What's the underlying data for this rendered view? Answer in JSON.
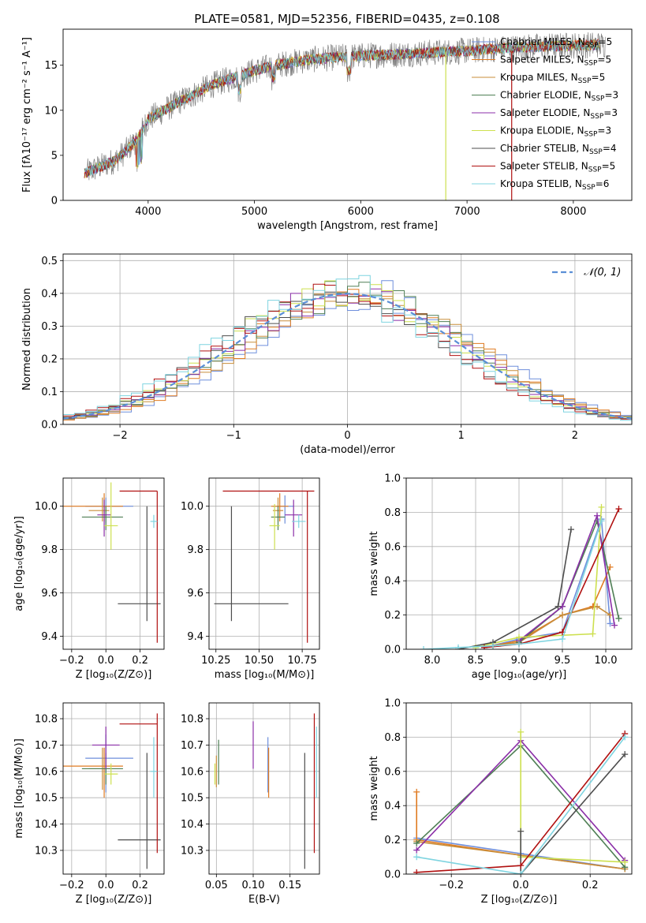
{
  "title": "PLATE=0581, MJD=52356, FIBERID=0435, z=0.108",
  "model_colors": [
    "#6f8fdc",
    "#e07b22",
    "#c88d3a",
    "#4f7f55",
    "#8b2fa8",
    "#cde04f",
    "#4d4d4d",
    "#b01010",
    "#7fd4e0"
  ],
  "chart_data": [
    {
      "id": "spectrum",
      "type": "line",
      "title": "PLATE=0581, MJD=52356, FIBERID=0435, z=0.108",
      "xlabel": "wavelength [Angstrom, rest frame]",
      "ylabel": "Flux [fλ10⁻¹⁷ erg cm⁻² s⁻¹ A⁻¹]",
      "xlim": [
        3200,
        8550
      ],
      "ylim": [
        0,
        19
      ],
      "xticks": [
        4000,
        5000,
        6000,
        7000,
        8000
      ],
      "yticks": [
        0,
        5,
        10,
        15
      ],
      "grid": false,
      "legend_position": "right",
      "data_color": "#808080",
      "continuum_knots_x": [
        3400,
        3500,
        3700,
        3800,
        3900,
        4000,
        4300,
        4600,
        4800,
        5000,
        5200,
        5500,
        5800,
        6100,
        6500,
        7000,
        7500,
        8000,
        8300
      ],
      "continuum_knots_y": [
        3.0,
        3.5,
        4.5,
        5.6,
        6.8,
        9.0,
        11.0,
        12.8,
        13.6,
        14.4,
        15.0,
        15.6,
        15.9,
        16.1,
        16.3,
        16.6,
        17.0,
        17.2,
        17.3
      ],
      "spikes": [
        {
          "x": 6800,
          "y": 0
        },
        {
          "x": 7420,
          "y": 0
        }
      ],
      "series": [
        {
          "name": "Chabrier MILES, N",
          "sub": "SSP",
          "suffix": "=5"
        },
        {
          "name": "Salpeter MILES, N",
          "sub": "SSP",
          "suffix": "=5"
        },
        {
          "name": "Kroupa MILES, N",
          "sub": "SSP",
          "suffix": "=5"
        },
        {
          "name": "Chabrier ELODIE, N",
          "sub": "SSP",
          "suffix": "=3"
        },
        {
          "name": "Salpeter ELODIE, N",
          "sub": "SSP",
          "suffix": "=3"
        },
        {
          "name": "Kroupa ELODIE, N",
          "sub": "SSP",
          "suffix": "=3"
        },
        {
          "name": "Chabrier STELIB, N",
          "sub": "SSP",
          "suffix": "=4"
        },
        {
          "name": "Salpeter STELIB, N",
          "sub": "SSP",
          "suffix": "=5"
        },
        {
          "name": "Kroupa STELIB, N",
          "sub": "SSP",
          "suffix": "=6"
        }
      ]
    },
    {
      "id": "residuals",
      "type": "histogram",
      "xlabel": "(data-model)/error",
      "ylabel": "Normed distribution",
      "xlim": [
        -2.5,
        2.5
      ],
      "ylim": [
        0,
        0.52
      ],
      "xticks": [
        -2,
        -1,
        0,
        1,
        2
      ],
      "yticks": [
        0.0,
        0.1,
        0.2,
        0.3,
        0.4,
        0.5
      ],
      "grid": true,
      "bin_width": 0.1,
      "reference_label": "𝒩(0, 1)",
      "reference_color": "#5b8fd6",
      "legend_position": "top-right",
      "peak_values": [
        0.38,
        0.42,
        0.4,
        0.44,
        0.41,
        0.39,
        0.4,
        0.41,
        0.49,
        0.45
      ]
    },
    {
      "id": "age-vs-Z",
      "type": "errorbar",
      "xlabel": "Z [log₁₀(Z/Z⊙)]",
      "ylabel": "age  [log₁₀(age/yr)]",
      "xlim": [
        -0.25,
        0.34
      ],
      "ylim": [
        9.34,
        10.13
      ],
      "xticks": [
        -0.2,
        0.0,
        0.2
      ],
      "yticks": [
        9.4,
        9.6,
        9.8,
        10.0
      ],
      "grid": true,
      "points": [
        {
          "x": 0.0,
          "y": 10.0,
          "xerr": [
            0.12,
            0.16
          ],
          "yerr": [
            0.08,
            0.04
          ]
        },
        {
          "x": -0.01,
          "y": 10.0,
          "xerr": [
            0.25,
            0.11
          ],
          "yerr": [
            0.07,
            0.06
          ]
        },
        {
          "x": -0.02,
          "y": 9.98,
          "xerr": [
            0.08,
            0.04
          ],
          "yerr": [
            0.05,
            0.06
          ]
        },
        {
          "x": 0.0,
          "y": 9.95,
          "xerr": [
            0.14,
            0.1
          ],
          "yerr": [
            0.06,
            0.05
          ]
        },
        {
          "x": -0.01,
          "y": 9.96,
          "xerr": [
            0.04,
            0.04
          ],
          "yerr": [
            0.1,
            0.07
          ]
        },
        {
          "x": 0.03,
          "y": 9.91,
          "xerr": [
            0.04,
            0.04
          ],
          "yerr": [
            0.11,
            0.2
          ]
        },
        {
          "x": 0.24,
          "y": 9.55,
          "xerr": [
            0.17,
            0.08
          ],
          "yerr": [
            0.08,
            0.45
          ]
        },
        {
          "x": 0.3,
          "y": 10.07,
          "xerr": [
            0.22,
            0.0
          ],
          "yerr": [
            0.7,
            0.0
          ]
        },
        {
          "x": 0.28,
          "y": 9.93,
          "xerr": [
            0.02,
            0.02
          ],
          "yerr": [
            0.03,
            0.03
          ]
        }
      ]
    },
    {
      "id": "age-vs-mass",
      "type": "errorbar",
      "xlabel": "mass [log₁₀(M/M⊙)]",
      "ylim": [
        9.34,
        10.13
      ],
      "xlim": [
        10.21,
        10.85
      ],
      "xticks": [
        10.25,
        10.5,
        10.75
      ],
      "yticks": [
        9.4,
        9.6,
        9.8,
        10.0
      ],
      "grid": true,
      "points": [
        {
          "x": 10.65,
          "y": 10.0,
          "xerr": [
            0.07,
            0.05
          ],
          "yerr": [
            0.08,
            0.05
          ]
        },
        {
          "x": 10.62,
          "y": 10.0,
          "xerr": [
            0.05,
            0.05
          ],
          "yerr": [
            0.07,
            0.06
          ]
        },
        {
          "x": 10.61,
          "y": 9.98,
          "xerr": [
            0.03,
            0.03
          ],
          "yerr": [
            0.05,
            0.06
          ]
        },
        {
          "x": 10.61,
          "y": 9.95,
          "xerr": [
            0.04,
            0.04
          ],
          "yerr": [
            0.06,
            0.05
          ]
        },
        {
          "x": 10.7,
          "y": 9.96,
          "xerr": [
            0.05,
            0.05
          ],
          "yerr": [
            0.1,
            0.07
          ]
        },
        {
          "x": 10.59,
          "y": 9.91,
          "xerr": [
            0.03,
            0.03
          ],
          "yerr": [
            0.11,
            0.1
          ]
        },
        {
          "x": 10.34,
          "y": 9.55,
          "xerr": [
            0.1,
            0.33
          ],
          "yerr": [
            0.08,
            0.45
          ]
        },
        {
          "x": 10.78,
          "y": 10.07,
          "xerr": [
            0.49,
            0.04
          ],
          "yerr": [
            0.7,
            0.0
          ]
        },
        {
          "x": 10.73,
          "y": 9.93,
          "xerr": [
            0.04,
            0.04
          ],
          "yerr": [
            0.03,
            0.03
          ]
        }
      ]
    },
    {
      "id": "weight-vs-age",
      "type": "line",
      "xlabel": "age  [log₁₀(age/yr)]",
      "ylabel": "mass weight",
      "xlim": [
        7.7,
        10.3
      ],
      "ylim": [
        0.0,
        1.0
      ],
      "xticks": [
        8.0,
        8.5,
        9.0,
        9.5,
        10.0
      ],
      "yticks": [
        0.0,
        0.2,
        0.4,
        0.6,
        0.8,
        1.0
      ],
      "grid": true,
      "series": [
        {
          "x": [
            8.6,
            9.0,
            9.5,
            9.95,
            10.05
          ],
          "y": [
            0.01,
            0.06,
            0.1,
            0.76,
            0.15
          ]
        },
        {
          "x": [
            8.7,
            9.0,
            9.5,
            9.85,
            10.05
          ],
          "y": [
            0.02,
            0.05,
            0.2,
            0.25,
            0.48
          ]
        },
        {
          "x": [
            8.7,
            9.0,
            9.5,
            9.9,
            10.05
          ],
          "y": [
            0.02,
            0.04,
            0.2,
            0.25,
            0.2
          ]
        },
        {
          "x": [
            9.0,
            9.5,
            9.9,
            10.15
          ],
          "y": [
            0.04,
            0.25,
            0.75,
            0.18
          ]
        },
        {
          "x": [
            9.0,
            9.5,
            9.9,
            10.1
          ],
          "y": [
            0.05,
            0.25,
            0.78,
            0.14
          ]
        },
        {
          "x": [
            8.5,
            9.0,
            9.85,
            9.95
          ],
          "y": [
            0.01,
            0.07,
            0.09,
            0.83
          ]
        },
        {
          "x": [
            8.3,
            8.7,
            9.45,
            9.6
          ],
          "y": [
            0.0,
            0.04,
            0.25,
            0.7
          ]
        },
        {
          "x": [
            8.6,
            9.0,
            9.5,
            10.15
          ],
          "y": [
            0.01,
            0.03,
            0.1,
            0.82
          ]
        },
        {
          "x": [
            7.9,
            8.3,
            8.7,
            9.0,
            9.5,
            9.95
          ],
          "y": [
            0.0,
            0.01,
            0.02,
            0.03,
            0.06,
            0.75
          ]
        }
      ]
    },
    {
      "id": "mass-vs-Z",
      "type": "errorbar",
      "xlabel": "Z [log₁₀(Z/Z⊙)]",
      "ylabel": "mass [log₁₀(M/M⊙)]",
      "xlim": [
        -0.25,
        0.34
      ],
      "ylim": [
        10.21,
        10.86
      ],
      "xticks": [
        -0.2,
        0.0,
        0.2
      ],
      "yticks": [
        10.3,
        10.4,
        10.5,
        10.6,
        10.7,
        10.8
      ],
      "grid": true,
      "points": [
        {
          "x": 0.0,
          "y": 10.65,
          "xerr": [
            0.12,
            0.16
          ],
          "yerr": [
            0.13,
            0.09
          ]
        },
        {
          "x": -0.01,
          "y": 10.62,
          "xerr": [
            0.25,
            0.11
          ],
          "yerr": [
            0.12,
            0.07
          ]
        },
        {
          "x": -0.02,
          "y": 10.61,
          "xerr": [
            0.08,
            0.04
          ],
          "yerr": [
            0.08,
            0.08
          ]
        },
        {
          "x": 0.0,
          "y": 10.61,
          "xerr": [
            0.14,
            0.1
          ],
          "yerr": [
            0.06,
            0.06
          ]
        },
        {
          "x": 0.0,
          "y": 10.7,
          "xerr": [
            0.08,
            0.08
          ],
          "yerr": [
            0.09,
            0.07
          ]
        },
        {
          "x": 0.03,
          "y": 10.59,
          "xerr": [
            0.04,
            0.04
          ],
          "yerr": [
            0.04,
            0.04
          ]
        },
        {
          "x": 0.24,
          "y": 10.34,
          "xerr": [
            0.17,
            0.08
          ],
          "yerr": [
            0.11,
            0.33
          ]
        },
        {
          "x": 0.3,
          "y": 10.78,
          "xerr": [
            0.22,
            0.0
          ],
          "yerr": [
            0.49,
            0.04
          ]
        },
        {
          "x": 0.28,
          "y": 10.6,
          "xerr": [
            0.02,
            0.02
          ],
          "yerr": [
            0.1,
            0.13
          ]
        }
      ]
    },
    {
      "id": "mass-vs-ebv",
      "type": "errorbar",
      "xlabel": "E(B-V)",
      "xlim": [
        0.04,
        0.19
      ],
      "ylim": [
        10.21,
        10.86
      ],
      "xticks": [
        0.05,
        0.1,
        0.15
      ],
      "yticks": [
        10.3,
        10.4,
        10.5,
        10.6,
        10.7,
        10.8
      ],
      "grid": true,
      "points": [
        {
          "x": 0.12,
          "y": 10.65,
          "xerr": [
            0,
            0
          ],
          "yerr": [
            0.13,
            0.08
          ]
        },
        {
          "x": 0.121,
          "y": 10.62,
          "xerr": [
            0,
            0
          ],
          "yerr": [
            0.12,
            0.07
          ]
        },
        {
          "x": 0.05,
          "y": 10.6,
          "xerr": [
            0,
            0
          ],
          "yerr": [
            0.06,
            0.06
          ]
        },
        {
          "x": 0.053,
          "y": 10.62,
          "xerr": [
            0,
            0
          ],
          "yerr": [
            0.07,
            0.1
          ]
        },
        {
          "x": 0.1,
          "y": 10.7,
          "xerr": [
            0,
            0
          ],
          "yerr": [
            0.09,
            0.09
          ]
        },
        {
          "x": 0.048,
          "y": 10.59,
          "xerr": [
            0,
            0
          ],
          "yerr": [
            0.04,
            0.04
          ]
        },
        {
          "x": 0.17,
          "y": 10.34,
          "xerr": [
            0,
            0
          ],
          "yerr": [
            0.11,
            0.33
          ]
        },
        {
          "x": 0.183,
          "y": 10.78,
          "xerr": [
            0,
            0
          ],
          "yerr": [
            0.49,
            0.04
          ]
        },
        {
          "x": 0.186,
          "y": 10.6,
          "xerr": [
            0,
            0
          ],
          "yerr": [
            0.1,
            0.17
          ]
        }
      ]
    },
    {
      "id": "weight-vs-Z",
      "type": "line",
      "xlabel": "Z [log₁₀(Z/Z⊙)]",
      "ylabel": "mass weight",
      "xlim": [
        -0.33,
        0.32
      ],
      "ylim": [
        0.0,
        1.0
      ],
      "xticks": [
        -0.2,
        0.0,
        0.2
      ],
      "yticks": [
        0.0,
        0.2,
        0.4,
        0.6,
        0.8,
        1.0
      ],
      "grid": true,
      "series": [
        {
          "x": [
            -0.3,
            0.0,
            0.3
          ],
          "y": [
            0.21,
            0.12,
            0.03
          ]
        },
        {
          "x": [
            -0.3,
            -0.3,
            0.0,
            0.3
          ],
          "y": [
            0.48,
            0.2,
            0.11,
            0.03
          ]
        },
        {
          "x": [
            -0.3,
            0.0,
            0.3
          ],
          "y": [
            0.19,
            0.11,
            0.03
          ]
        },
        {
          "x": [
            -0.3,
            0.0,
            0.3
          ],
          "y": [
            0.18,
            0.75,
            0.04
          ]
        },
        {
          "x": [
            -0.3,
            0.0,
            0.3
          ],
          "y": [
            0.14,
            0.78,
            0.08
          ]
        },
        {
          "x": [
            0.0,
            0.0,
            0.3
          ],
          "y": [
            0.83,
            0.1,
            0.07
          ]
        },
        {
          "x": [
            0.0,
            0.0,
            0.3
          ],
          "y": [
            0.25,
            0.0,
            0.7
          ]
        },
        {
          "x": [
            -0.3,
            0.0,
            0.3
          ],
          "y": [
            0.01,
            0.05,
            0.82
          ]
        },
        {
          "x": [
            -0.3,
            0.0,
            0.3
          ],
          "y": [
            0.1,
            0.0,
            0.8
          ]
        }
      ]
    }
  ]
}
